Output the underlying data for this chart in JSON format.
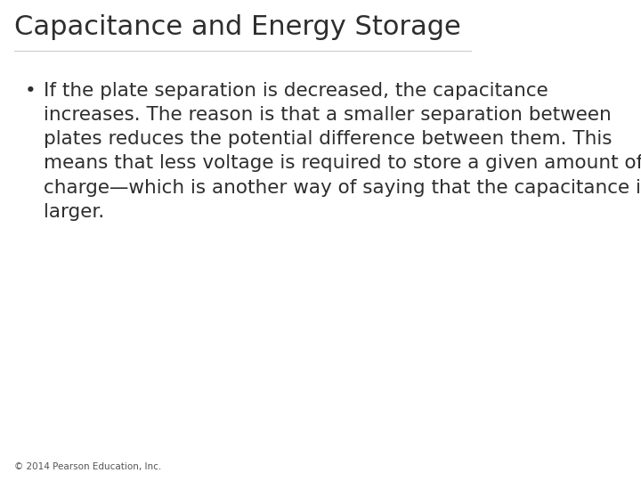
{
  "title": "Capacitance and Energy Storage",
  "title_fontsize": 22,
  "title_color": "#2e2e2e",
  "body_text": "If the plate separation is decreased, the capacitance increases. The reason is that a smaller separation between plates reduces the potential difference between them. This means that less voltage is required to store a given amount of charge—which is another way of saying that the capacitance is larger.",
  "body_fontsize": 15.5,
  "body_color": "#2e2e2e",
  "bullet": "•",
  "footer_text": "© 2014 Pearson Education, Inc.",
  "footer_fontsize": 7.5,
  "background_color": "#ffffff",
  "line_color": "#cccccc"
}
